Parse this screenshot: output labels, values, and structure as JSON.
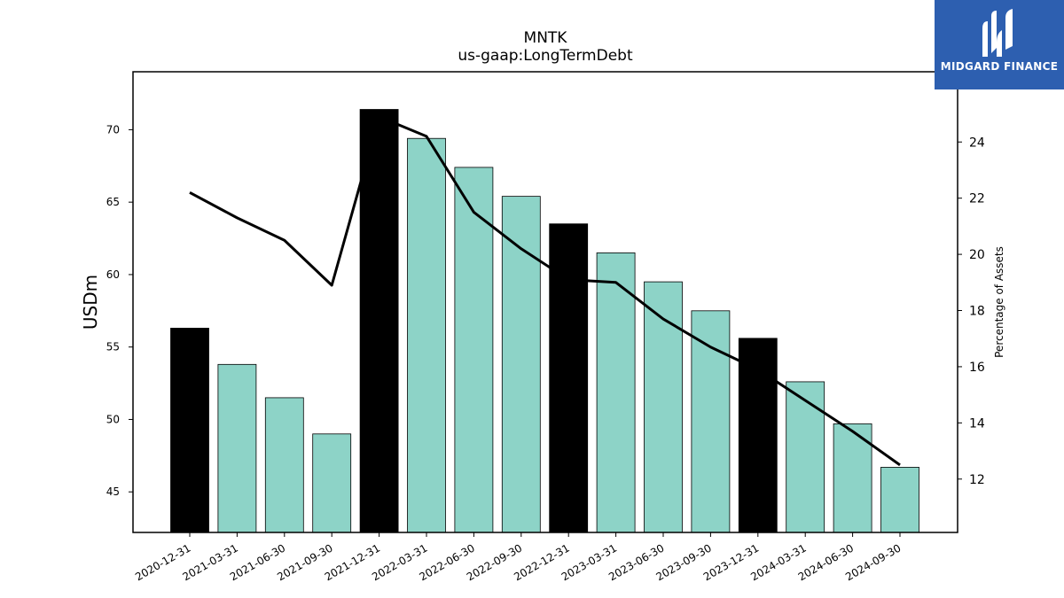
{
  "chart_data": {
    "type": "bar",
    "title": "MNTK",
    "subtitle": "us-gaap:LongTermDebt",
    "ylabel": "USDm",
    "y2label": "Percentage of Assets",
    "categories": [
      "2020-12-31",
      "2021-03-31",
      "2021-06-30",
      "2021-09-30",
      "2021-12-31",
      "2022-03-31",
      "2022-06-30",
      "2022-09-30",
      "2022-12-31",
      "2023-03-31",
      "2023-06-30",
      "2023-09-30",
      "2023-12-31",
      "2024-03-31",
      "2024-06-30",
      "2024-09-30"
    ],
    "series": [
      {
        "type": "bar",
        "axis": "left",
        "values": [
          56.3,
          53.8,
          51.5,
          49.0,
          71.4,
          69.4,
          67.4,
          65.4,
          63.5,
          61.5,
          59.5,
          57.5,
          55.6,
          52.6,
          49.7,
          46.7
        ],
        "colors": [
          "#000000",
          "#8dd3c7",
          "#8dd3c7",
          "#8dd3c7",
          "#000000",
          "#8dd3c7",
          "#8dd3c7",
          "#8dd3c7",
          "#000000",
          "#8dd3c7",
          "#8dd3c7",
          "#8dd3c7",
          "#000000",
          "#8dd3c7",
          "#8dd3c7",
          "#8dd3c7"
        ]
      },
      {
        "type": "line",
        "axis": "right",
        "color": "#000000",
        "values": [
          22.2,
          21.3,
          20.5,
          18.9,
          24.9,
          24.2,
          21.5,
          20.2,
          19.1,
          19.0,
          17.7,
          16.7,
          15.9,
          14.8,
          13.7,
          12.5
        ]
      }
    ],
    "ylim": [
      42.2,
      74.0
    ],
    "y2lim": [
      10.1,
      26.5
    ],
    "yticks": [
      45,
      50,
      55,
      60,
      65,
      70
    ],
    "y2ticks": [
      12,
      14,
      16,
      18,
      20,
      22,
      24
    ],
    "grid": false,
    "legend": "none"
  },
  "logo": {
    "text": "MIDGARD FINANCE"
  },
  "colors": {
    "bar": "#8dd3c7",
    "bar_highlight": "#000000",
    "logo_bg": "#2d5fb0"
  }
}
